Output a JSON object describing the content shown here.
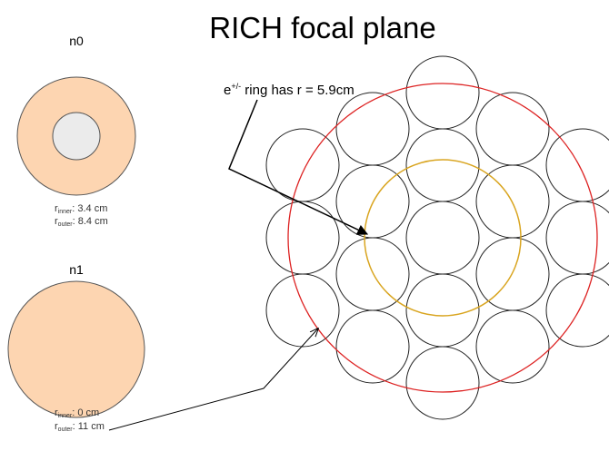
{
  "title": "RICH focal plane",
  "radiators": [
    {
      "name": "n0",
      "inner": {
        "symbol": "r",
        "sub": "inner",
        "rest": ": 3.4 cm"
      },
      "outer": {
        "symbol": "r",
        "sub": "outer",
        "rest": ": 8.4 cm"
      }
    },
    {
      "name": "n1",
      "inner": {
        "symbol": "r",
        "sub": "inner",
        "rest": ": 0 cm"
      },
      "outer": {
        "symbol": "r",
        "sub": "outer",
        "rest": ": 11 cm"
      }
    }
  ],
  "ring_label": {
    "base": "e",
    "sup": "+/-",
    "rest": " ring has r = 5.9cm"
  }
}
